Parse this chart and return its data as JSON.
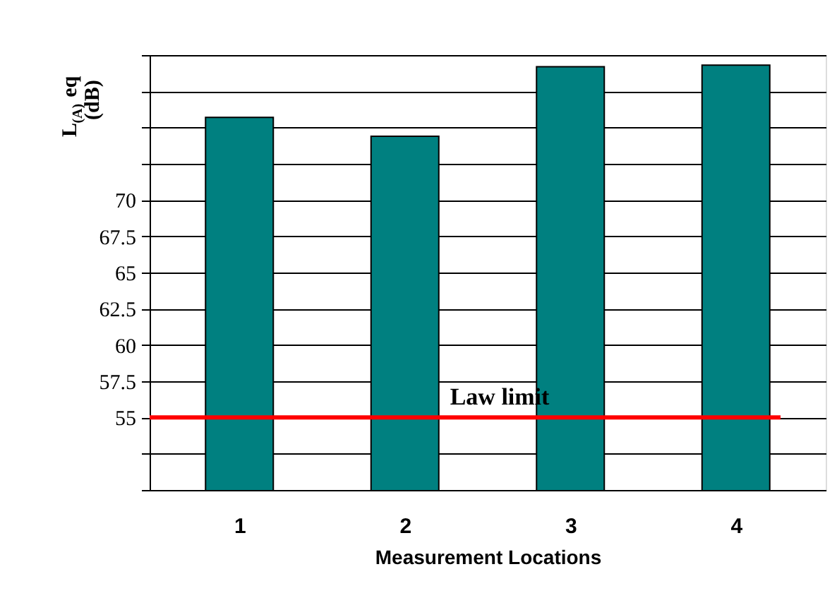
{
  "chart_data": {
    "type": "bar",
    "xlabel": "Measurement Locations",
    "ylabel": "L$_{(A)}$eq\n(dB)",
    "categories": [
      "1",
      "2",
      "3",
      "4"
    ],
    "values": [
      75.7,
      74.4,
      79.2,
      79.3
    ],
    "color": "#008080",
    "ylim": [
      50,
      80
    ],
    "yticks": [
      {
        "value": 50,
        "label": null
      },
      {
        "value": 52.5,
        "label": null
      },
      55,
      57.5,
      60,
      62.5,
      65,
      67.5,
      70,
      {
        "value": 72.5,
        "label": null
      },
      {
        "value": 75,
        "label": null
      },
      {
        "value": 77.5,
        "label": null
      },
      {
        "value": 80,
        "label": null
      }
    ],
    "grid": "y",
    "ref_lines": [
      {
        "axis": "y",
        "value": 55,
        "label": "Law limit",
        "color": "#ff0000"
      }
    ]
  }
}
